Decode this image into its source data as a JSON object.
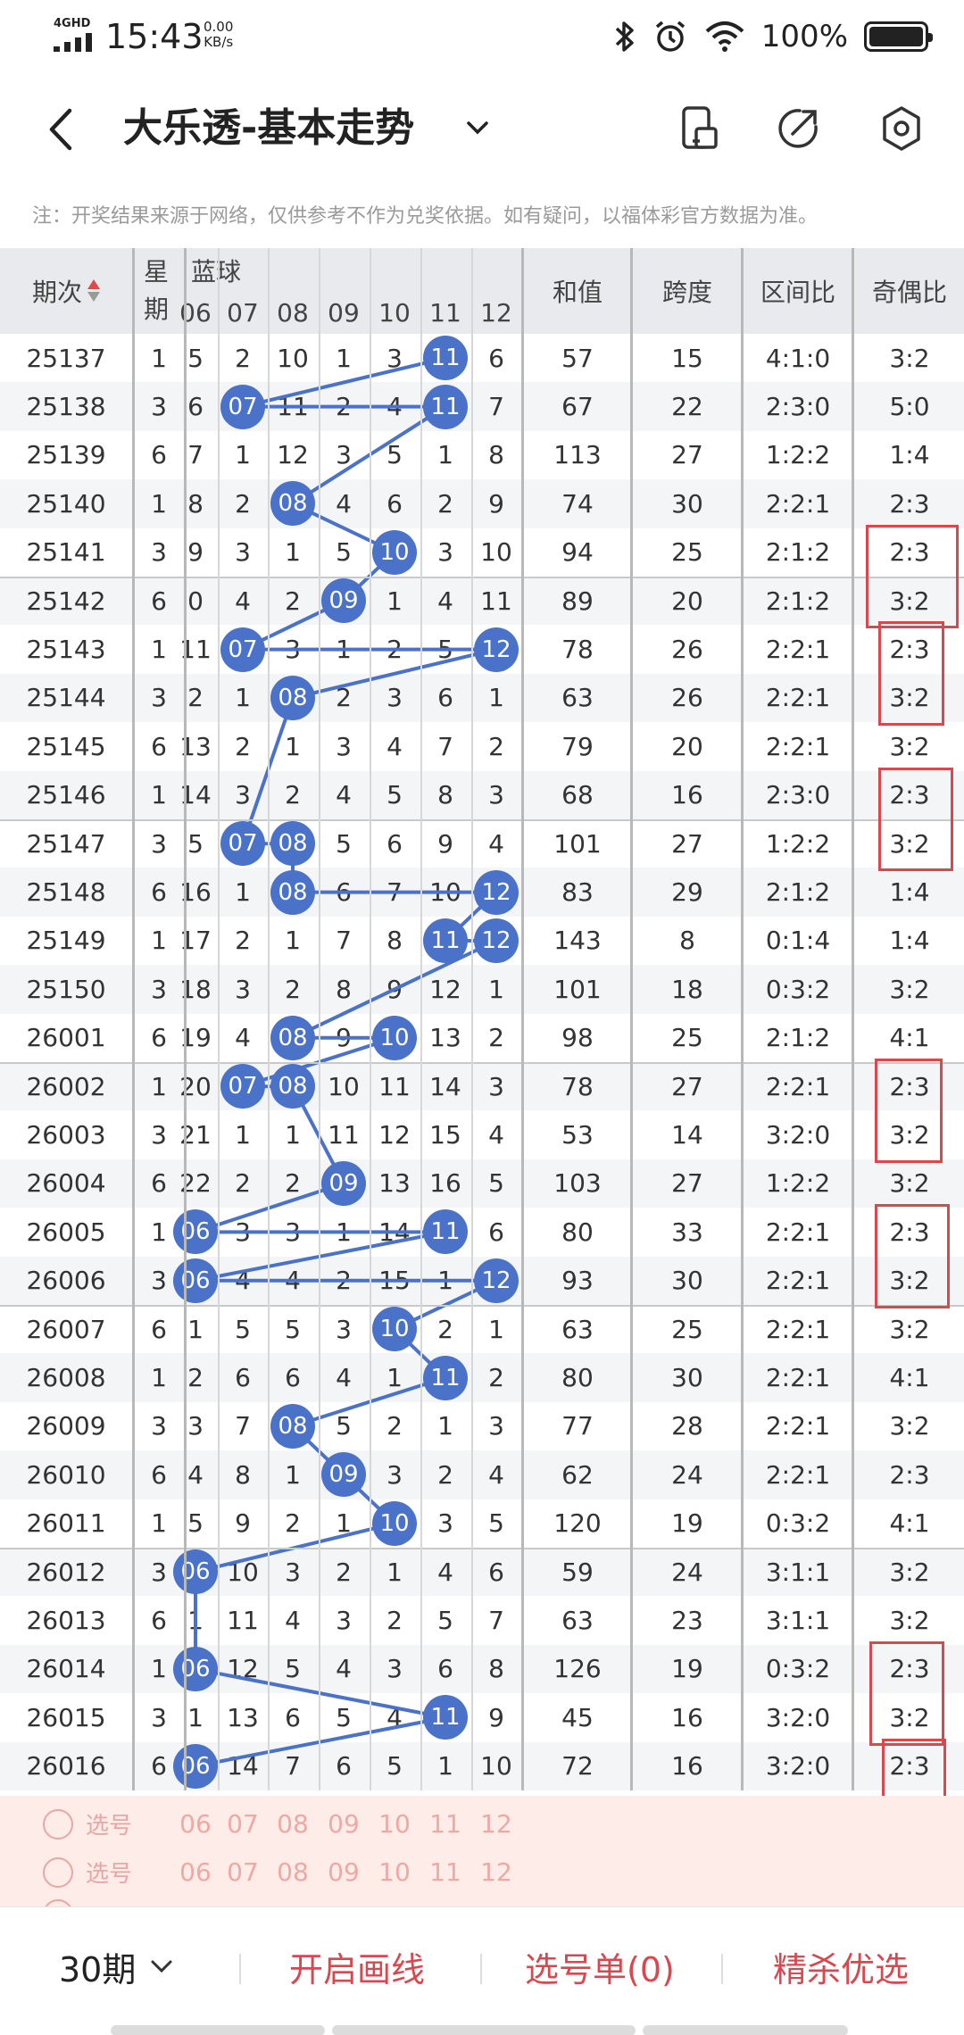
{
  "status_bar": {
    "network": "4GHD",
    "time": "15:43",
    "speed_value": "0.00",
    "speed_unit": "KB/s",
    "battery": "100%"
  },
  "header": {
    "title": "大乐透-基本走势",
    "icons": [
      "back-icon",
      "chevron-down-icon",
      "phone-icon",
      "share-icon",
      "settings-icon"
    ]
  },
  "notice": "注：开奖结果来源于网络，仅供参考不作为兑奖依据。如有疑问，以福体彩官方数据为准。",
  "table": {
    "headers": {
      "period": "期次",
      "week_top": "星",
      "week_bottom": "期",
      "blue": "蓝球",
      "sum": "和值",
      "span": "跨度",
      "zone": "区间比",
      "odd_even": "奇偶比"
    },
    "blue_columns": [
      "06",
      "07",
      "08",
      "09",
      "10",
      "11",
      "12"
    ],
    "rows": [
      {
        "period": "25137",
        "week": "1",
        "nums": [
          "5",
          "2",
          "10",
          "1",
          "3",
          "11",
          "6"
        ],
        "sum": "57",
        "span": "15",
        "zone": "4:1:0",
        "oe": "3:2"
      },
      {
        "period": "25138",
        "week": "3",
        "nums": [
          "6",
          "07",
          "11",
          "2",
          "4",
          "11",
          "7"
        ],
        "sum": "67",
        "span": "22",
        "zone": "2:3:0",
        "oe": "5:0"
      },
      {
        "period": "25139",
        "week": "6",
        "nums": [
          "7",
          "1",
          "12",
          "3",
          "5",
          "1",
          "8"
        ],
        "sum": "113",
        "span": "27",
        "zone": "1:2:2",
        "oe": "1:4"
      },
      {
        "period": "25140",
        "week": "1",
        "nums": [
          "8",
          "2",
          "08",
          "4",
          "6",
          "2",
          "9"
        ],
        "sum": "74",
        "span": "30",
        "zone": "2:2:1",
        "oe": "2:3"
      },
      {
        "period": "25141",
        "week": "3",
        "nums": [
          "9",
          "3",
          "1",
          "5",
          "10",
          "3",
          "10"
        ],
        "sum": "94",
        "span": "25",
        "zone": "2:1:2",
        "oe": "2:3"
      },
      {
        "period": "25142",
        "week": "6",
        "nums": [
          "0",
          "4",
          "2",
          "09",
          "1",
          "4",
          "11"
        ],
        "sum": "89",
        "span": "20",
        "zone": "2:1:2",
        "oe": "3:2"
      },
      {
        "period": "25143",
        "week": "1",
        "nums": [
          "11",
          "07",
          "3",
          "1",
          "2",
          "5",
          "12"
        ],
        "sum": "78",
        "span": "26",
        "zone": "2:2:1",
        "oe": "2:3"
      },
      {
        "period": "25144",
        "week": "3",
        "nums": [
          "2",
          "1",
          "08",
          "2",
          "3",
          "6",
          "1"
        ],
        "sum": "63",
        "span": "26",
        "zone": "2:2:1",
        "oe": "3:2"
      },
      {
        "period": "25145",
        "week": "6",
        "nums": [
          "13",
          "2",
          "1",
          "3",
          "4",
          "7",
          "2"
        ],
        "sum": "79",
        "span": "20",
        "zone": "2:2:1",
        "oe": "3:2"
      },
      {
        "period": "25146",
        "week": "1",
        "nums": [
          "14",
          "3",
          "2",
          "4",
          "5",
          "8",
          "3"
        ],
        "sum": "68",
        "span": "16",
        "zone": "2:3:0",
        "oe": "2:3"
      },
      {
        "period": "25147",
        "week": "3",
        "nums": [
          "5",
          "07",
          "08",
          "5",
          "6",
          "9",
          "4"
        ],
        "sum": "101",
        "span": "27",
        "zone": "1:2:2",
        "oe": "3:2"
      },
      {
        "period": "25148",
        "week": "6",
        "nums": [
          "16",
          "1",
          "08",
          "6",
          "7",
          "10",
          "12"
        ],
        "sum": "83",
        "span": "29",
        "zone": "2:1:2",
        "oe": "1:4"
      },
      {
        "period": "25149",
        "week": "1",
        "nums": [
          "17",
          "2",
          "1",
          "7",
          "8",
          "11",
          "12"
        ],
        "sum": "143",
        "span": "8",
        "zone": "0:1:4",
        "oe": "1:4"
      },
      {
        "period": "25150",
        "week": "3",
        "nums": [
          "18",
          "3",
          "2",
          "8",
          "9",
          "12",
          "1"
        ],
        "sum": "101",
        "span": "18",
        "zone": "0:3:2",
        "oe": "3:2"
      },
      {
        "period": "26001",
        "week": "6",
        "nums": [
          "19",
          "4",
          "08",
          "9",
          "10",
          "13",
          "2"
        ],
        "sum": "98",
        "span": "25",
        "zone": "2:1:2",
        "oe": "4:1"
      },
      {
        "period": "26002",
        "week": "1",
        "nums": [
          "20",
          "07",
          "08",
          "10",
          "11",
          "14",
          "3"
        ],
        "sum": "78",
        "span": "27",
        "zone": "2:2:1",
        "oe": "2:3"
      },
      {
        "period": "26003",
        "week": "3",
        "nums": [
          "21",
          "1",
          "1",
          "11",
          "12",
          "15",
          "4"
        ],
        "sum": "53",
        "span": "14",
        "zone": "3:2:0",
        "oe": "3:2"
      },
      {
        "period": "26004",
        "week": "6",
        "nums": [
          "22",
          "2",
          "2",
          "09",
          "13",
          "16",
          "5"
        ],
        "sum": "103",
        "span": "27",
        "zone": "1:2:2",
        "oe": "3:2"
      },
      {
        "period": "26005",
        "week": "1",
        "nums": [
          "06",
          "3",
          "3",
          "1",
          "14",
          "11",
          "6"
        ],
        "sum": "80",
        "span": "33",
        "zone": "2:2:1",
        "oe": "2:3"
      },
      {
        "period": "26006",
        "week": "3",
        "nums": [
          "06",
          "4",
          "4",
          "2",
          "15",
          "1",
          "12"
        ],
        "sum": "93",
        "span": "30",
        "zone": "2:2:1",
        "oe": "3:2"
      },
      {
        "period": "26007",
        "week": "6",
        "nums": [
          "1",
          "5",
          "5",
          "3",
          "10",
          "2",
          "1"
        ],
        "sum": "63",
        "span": "25",
        "zone": "2:2:1",
        "oe": "3:2"
      },
      {
        "period": "26008",
        "week": "1",
        "nums": [
          "2",
          "6",
          "6",
          "4",
          "1",
          "11",
          "2"
        ],
        "sum": "80",
        "span": "30",
        "zone": "2:2:1",
        "oe": "4:1"
      },
      {
        "period": "26009",
        "week": "3",
        "nums": [
          "3",
          "7",
          "08",
          "5",
          "2",
          "1",
          "3"
        ],
        "sum": "77",
        "span": "28",
        "zone": "2:2:1",
        "oe": "3:2"
      },
      {
        "period": "26010",
        "week": "6",
        "nums": [
          "4",
          "8",
          "1",
          "09",
          "3",
          "2",
          "4"
        ],
        "sum": "62",
        "span": "24",
        "zone": "2:2:1",
        "oe": "2:3"
      },
      {
        "period": "26011",
        "week": "1",
        "nums": [
          "5",
          "9",
          "2",
          "1",
          "10",
          "3",
          "5"
        ],
        "sum": "120",
        "span": "19",
        "zone": "0:3:2",
        "oe": "4:1"
      },
      {
        "period": "26012",
        "week": "3",
        "nums": [
          "06",
          "10",
          "3",
          "2",
          "1",
          "4",
          "6"
        ],
        "sum": "59",
        "span": "24",
        "zone": "3:1:1",
        "oe": "3:2"
      },
      {
        "period": "26013",
        "week": "6",
        "nums": [
          "1",
          "11",
          "4",
          "3",
          "2",
          "5",
          "7"
        ],
        "sum": "63",
        "span": "23",
        "zone": "3:1:1",
        "oe": "3:2"
      },
      {
        "period": "26014",
        "week": "1",
        "nums": [
          "06",
          "12",
          "5",
          "4",
          "3",
          "6",
          "8"
        ],
        "sum": "126",
        "span": "19",
        "zone": "0:3:2",
        "oe": "2:3"
      },
      {
        "period": "26015",
        "week": "3",
        "nums": [
          "1",
          "13",
          "6",
          "5",
          "4",
          "11",
          "9"
        ],
        "sum": "45",
        "span": "16",
        "zone": "3:2:0",
        "oe": "3:2"
      },
      {
        "period": "26016",
        "week": "6",
        "nums": [
          "06",
          "14",
          "7",
          "6",
          "5",
          "1",
          "10"
        ],
        "sum": "72",
        "span": "16",
        "zone": "3:2:0",
        "oe": "2:3"
      }
    ]
  },
  "pick_rows": [
    {
      "label": "选号",
      "nums": [
        "06",
        "07",
        "08",
        "09",
        "10",
        "11",
        "12"
      ]
    },
    {
      "label": "选号",
      "nums": [
        "06",
        "07",
        "08",
        "09",
        "10",
        "11",
        "12"
      ]
    }
  ],
  "bottom_bar": {
    "periods": "30期",
    "draw_lines": "开启画线",
    "selection": "选号单(0)",
    "premium": "精杀优选"
  },
  "colors": {
    "ball": "#4a72c9",
    "accent_red": "#d9474f",
    "header_bg": "#e9eaed"
  }
}
